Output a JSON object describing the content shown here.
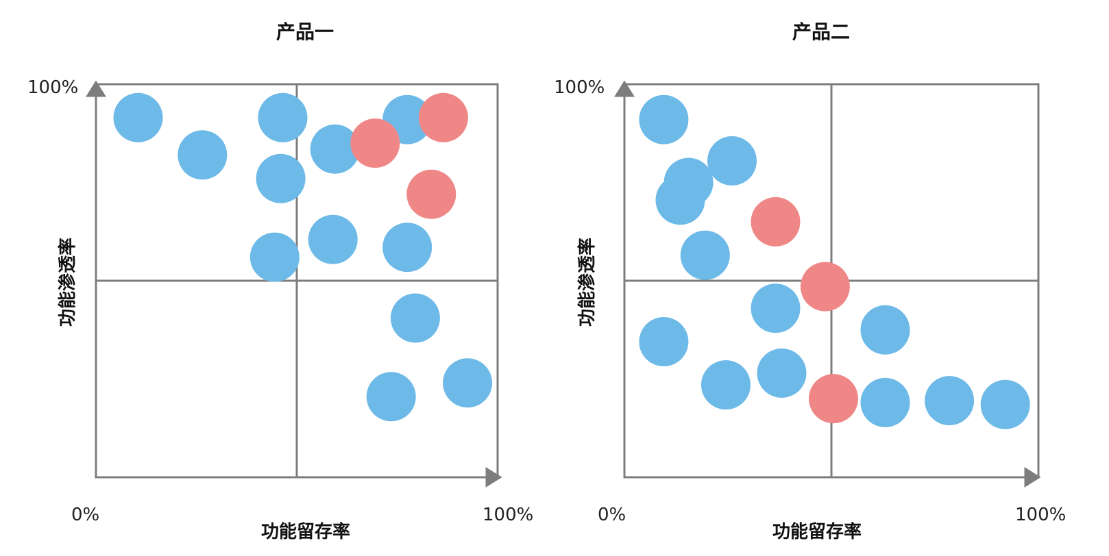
{
  "chart_data": [
    {
      "type": "scatter",
      "title": "产品一",
      "xlabel": "功能留存率",
      "ylabel": "功能渗透率",
      "x_tick_start": "0%",
      "x_tick_end": "100%",
      "y_tick_end": "100%",
      "xlim": [
        0,
        100
      ],
      "ylim": [
        0,
        100
      ],
      "quadrant_divider": {
        "x": 50,
        "y": 50
      },
      "grid": false,
      "colors": {
        "blue": "#6db9e8",
        "red": "#ef8787",
        "axis": "#7d7d7d"
      },
      "series": [
        {
          "color": "blue",
          "points": [
            [
              10.5,
              91.5
            ],
            [
              26.5,
              82
            ],
            [
              46.5,
              91.5
            ],
            [
              46,
              76
            ],
            [
              59.5,
              83.5
            ],
            [
              77.5,
              91
            ],
            [
              44.5,
              56
            ],
            [
              59,
              60.5
            ],
            [
              77.5,
              58.5
            ],
            [
              79.5,
              40.5
            ],
            [
              73.5,
              20.5
            ],
            [
              92.5,
              24
            ]
          ]
        },
        {
          "color": "red",
          "points": [
            [
              69.5,
              85
            ],
            [
              86.5,
              91.5
            ],
            [
              83.5,
              72
            ]
          ]
        }
      ]
    },
    {
      "type": "scatter",
      "title": "产品二",
      "xlabel": "功能留存率",
      "ylabel": "功能渗透率",
      "x_tick_start": "0%",
      "x_tick_end": "100%",
      "y_tick_end": "100%",
      "xlim": [
        0,
        100
      ],
      "ylim": [
        0,
        100
      ],
      "quadrant_divider": {
        "x": 50,
        "y": 50
      },
      "grid": false,
      "colors": {
        "blue": "#6db9e8",
        "red": "#ef8787",
        "axis": "#7d7d7d"
      },
      "series": [
        {
          "color": "blue",
          "points": [
            [
              9.5,
              91
            ],
            [
              15.5,
              75
            ],
            [
              26,
              80.5
            ],
            [
              13.5,
              70.5
            ],
            [
              19.5,
              56.5
            ],
            [
              36.5,
              43
            ],
            [
              9.5,
              34.5
            ],
            [
              24.5,
              23.5
            ],
            [
              38,
              26.5
            ],
            [
              63,
              37.5
            ],
            [
              63,
              19
            ],
            [
              78.5,
              19.5
            ],
            [
              92,
              18.5
            ]
          ]
        },
        {
          "color": "red",
          "points": [
            [
              36.5,
              65
            ],
            [
              48.5,
              48.5
            ],
            [
              50.5,
              20
            ]
          ]
        }
      ]
    }
  ]
}
